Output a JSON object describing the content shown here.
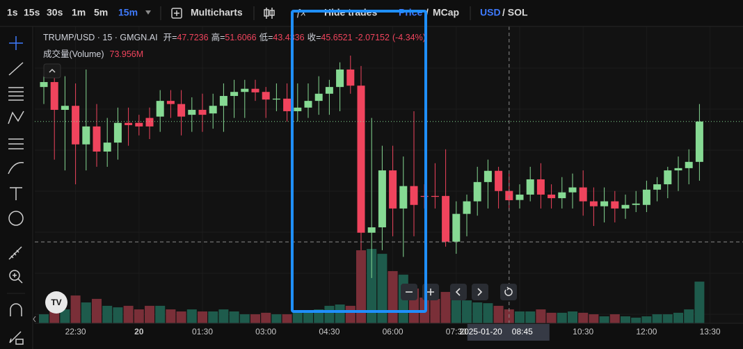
{
  "toolbar": {
    "intervals": [
      "1s",
      "15s",
      "30s",
      "1m",
      "5m",
      "15m"
    ],
    "multicharts": "Multicharts",
    "hide_trades": "Hide trades",
    "price": "Price",
    "separator": "/",
    "mcap": "MCap",
    "usd": "USD",
    "sol": "/ SOL"
  },
  "header": {
    "symbol": "TRUMP/USD · 15 · GMGN.AI",
    "open_label": "开=",
    "high_label": "高=",
    "low_label": "低=",
    "close_label": "收=",
    "change": -2.07152,
    "change_pct": {
      "value": -4.34,
      "label": "(-4.34%)"
    },
    "volume_title": "成交量(Volume)",
    "volume_label": "73.956M"
  },
  "chart_data": {
    "type": "candlestick",
    "open": [
      70.9,
      72.0,
      65.8,
      66.7,
      58.1,
      62.1,
      56.5,
      58.5,
      62.9,
      62.9,
      64.0,
      64.3,
      67.8,
      67.1,
      64.7,
      65.8,
      65.0,
      66.7,
      68.9,
      69.8,
      70.5,
      69.8,
      68.1,
      68.3,
      65.5,
      66.3,
      67.8,
      69.4,
      70.9,
      74.8,
      71.2,
      38.4,
      39.6,
      52.3,
      43.8,
      48.8,
      46.6,
      46.6,
      46.6,
      36.4,
      42.6,
      45.4,
      49.7,
      52.2,
      47.7236,
      45.7,
      46.9,
      50.3,
      46.9,
      46.1,
      47.4,
      48.5,
      45.4,
      44.3,
      45.4,
      43.8,
      44.6,
      44.6,
      48.0,
      49.2,
      52.3,
      52.8,
      54.2
    ],
    "high": [
      74.0,
      74.8,
      73.3,
      71.7,
      74.8,
      67.1,
      64.0,
      66.3,
      66.3,
      64.7,
      66.3,
      70.2,
      70.2,
      70.2,
      68.6,
      69.4,
      69.4,
      71.7,
      72.5,
      72.5,
      72.5,
      70.9,
      71.7,
      71.7,
      71.7,
      71.7,
      73.3,
      72.5,
      76.4,
      77.9,
      75.6,
      64.0,
      57.8,
      57.8,
      55.4,
      65.5,
      49.2,
      53.9,
      57.0,
      45.4,
      46.9,
      53.1,
      54.7,
      53.1,
      51.6066,
      49.2,
      53.1,
      53.9,
      49.2,
      50.8,
      51.6,
      52.3,
      48.5,
      48.5,
      47.7,
      46.9,
      47.7,
      50.0,
      50.8,
      53.1,
      55.4,
      57.0,
      67.1
    ],
    "low": [
      67.1,
      54.7,
      52.3,
      49.2,
      52.3,
      53.1,
      53.1,
      54.7,
      57.8,
      60.1,
      59.3,
      60.9,
      64.0,
      60.1,
      60.9,
      60.9,
      61.6,
      60.9,
      64.0,
      64.0,
      67.8,
      64.0,
      65.5,
      63.2,
      63.2,
      64.0,
      64.7,
      64.7,
      65.5,
      69.4,
      34.5,
      28.3,
      34.5,
      37.6,
      33.0,
      37.6,
      43.8,
      43.8,
      35.3,
      33.7,
      37.6,
      42.2,
      43.8,
      43.8,
      43.4336,
      43.8,
      45.4,
      43.8,
      43.8,
      43.8,
      43.8,
      42.2,
      39.9,
      40.7,
      40.7,
      41.5,
      43.0,
      43.0,
      45.4,
      46.1,
      47.7,
      49.2,
      50.0
    ],
    "close": [
      72.0,
      65.8,
      66.7,
      58.1,
      62.1,
      56.5,
      58.5,
      62.9,
      62.4,
      62.1,
      62.1,
      67.8,
      67.1,
      64.3,
      65.8,
      64.7,
      66.7,
      68.9,
      69.8,
      70.5,
      69.7,
      68.1,
      68.3,
      65.5,
      66.3,
      67.8,
      69.4,
      70.9,
      74.8,
      71.2,
      38.4,
      39.6,
      52.3,
      43.8,
      48.8,
      44.6,
      46.4,
      46.4,
      36.4,
      42.6,
      45.4,
      49.7,
      52.2,
      47.7,
      45.6521,
      46.9,
      50.3,
      46.9,
      46.1,
      47.4,
      48.5,
      45.4,
      44.3,
      45.4,
      43.8,
      44.6,
      44.9,
      48.0,
      49.2,
      52.3,
      52.8,
      54.2,
      63.2
    ],
    "volume": [
      48,
      93,
      74,
      148,
      111,
      130,
      93,
      85,
      93,
      74,
      93,
      93,
      74,
      63,
      74,
      63,
      63,
      74,
      63,
      48,
      48,
      56,
      48,
      48,
      63,
      63,
      74,
      93,
      100,
      93,
      389,
      396,
      370,
      278,
      259,
      185,
      137,
      130,
      167,
      148,
      122,
      111,
      107,
      93,
      73.956,
      63,
      63,
      74,
      56,
      56,
      63,
      56,
      48,
      37,
      48,
      37,
      30,
      37,
      48,
      48,
      56,
      74,
      222
    ],
    "ylim": [
      18.2,
      84.1
    ],
    "volume_ylim": [
      0,
      400
    ],
    "up_color": "#86d993",
    "down_color": "#f0445d",
    "volume_up_color": "#1e5b4c",
    "volume_down_color": "#7a2f38",
    "x_labels": [
      "22:30",
      "20",
      "01:30",
      "03:00",
      "04:30",
      "06:00",
      "07:30",
      null,
      "10:30",
      "12:00",
      "13:30"
    ],
    "crosshair_date": "2025-01-20",
    "crosshair_time": "08:45"
  }
}
